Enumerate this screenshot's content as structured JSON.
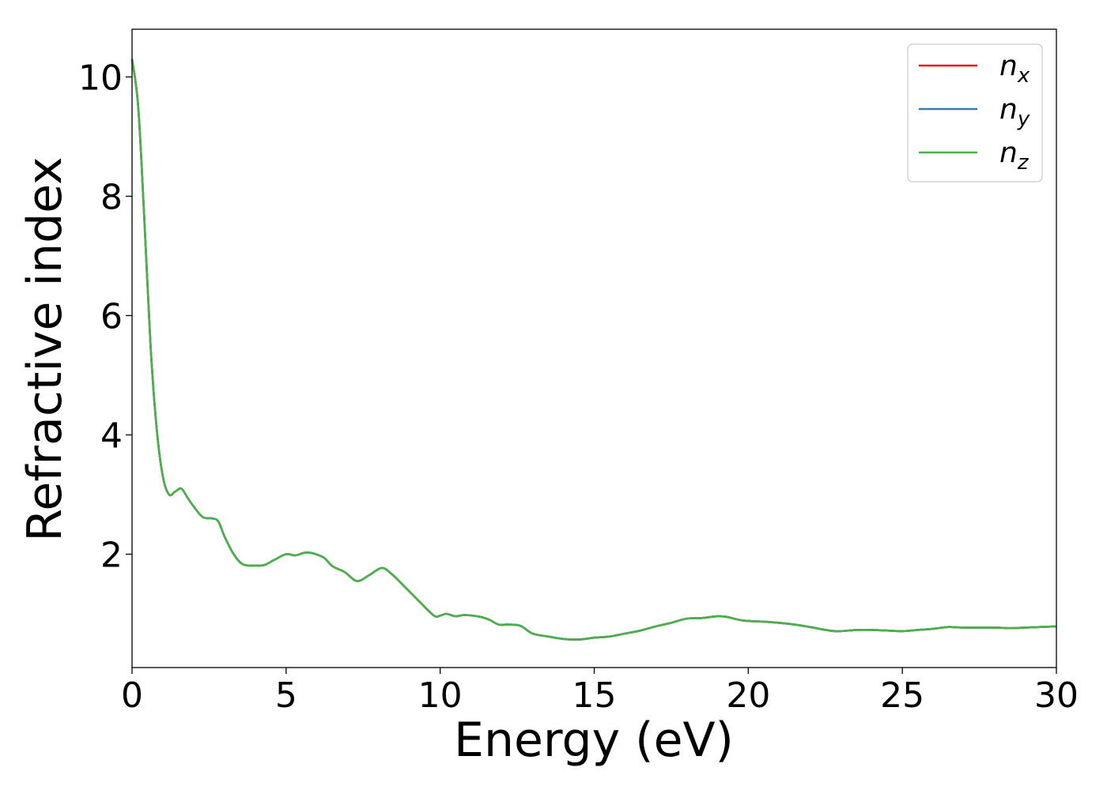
{
  "chart_data": {
    "type": "line",
    "xlabel": "Energy (eV)",
    "ylabel": "Refractive index",
    "xlim": [
      0,
      30
    ],
    "ylim": [
      0.1,
      10.8
    ],
    "xticks": [
      "0",
      "5",
      "10",
      "15",
      "20",
      "25",
      "30"
    ],
    "yticks": [
      "2",
      "4",
      "6",
      "8",
      "10"
    ],
    "grid": false,
    "legend_position": "top-right",
    "legend": [
      {
        "base": "n",
        "sub": "x",
        "color": "#e41a1c"
      },
      {
        "base": "n",
        "sub": "y",
        "color": "#377eb8"
      },
      {
        "base": "n",
        "sub": "z",
        "color": "#4daf4a"
      }
    ],
    "x": [
      0,
      0.2,
      0.4,
      0.6,
      0.8,
      1.0,
      1.2,
      1.4,
      1.6,
      1.8,
      2.0,
      2.3,
      2.6,
      2.8,
      3.0,
      3.3,
      3.6,
      4.0,
      4.3,
      4.6,
      5.0,
      5.3,
      5.7,
      6.2,
      6.5,
      6.9,
      7.3,
      7.7,
      8.1,
      8.4,
      8.8,
      9.3,
      9.8,
      10.0,
      10.2,
      10.5,
      10.8,
      11.3,
      11.6,
      11.9,
      12.2,
      12.6,
      13.0,
      13.5,
      14.0,
      14.5,
      15.0,
      15.5,
      16.0,
      16.5,
      17.0,
      17.5,
      18.0,
      18.5,
      19.0,
      19.3,
      19.8,
      20.5,
      21.0,
      21.5,
      22.0,
      22.8,
      23.5,
      24.0,
      24.5,
      25.0,
      25.5,
      26.0,
      26.5,
      27.0,
      28.0,
      28.5,
      29.0,
      30.0
    ],
    "series": [
      {
        "name": "n_x",
        "color": "#e41a1c",
        "values": [
          10.3,
          9.5,
          7.6,
          5.5,
          4.1,
          3.3,
          3.0,
          3.05,
          3.1,
          2.95,
          2.8,
          2.62,
          2.6,
          2.55,
          2.3,
          2.0,
          1.83,
          1.81,
          1.82,
          1.9,
          2.0,
          1.98,
          2.03,
          1.95,
          1.8,
          1.7,
          1.55,
          1.65,
          1.77,
          1.68,
          1.48,
          1.22,
          0.97,
          0.97,
          1.0,
          0.96,
          0.98,
          0.95,
          0.9,
          0.82,
          0.82,
          0.8,
          0.67,
          0.62,
          0.58,
          0.57,
          0.6,
          0.62,
          0.67,
          0.72,
          0.79,
          0.85,
          0.92,
          0.93,
          0.96,
          0.95,
          0.89,
          0.87,
          0.85,
          0.82,
          0.78,
          0.71,
          0.73,
          0.73,
          0.72,
          0.71,
          0.73,
          0.75,
          0.78,
          0.77,
          0.77,
          0.76,
          0.77,
          0.79
        ]
      },
      {
        "name": "n_y",
        "color": "#377eb8",
        "values": [
          10.3,
          9.5,
          7.6,
          5.5,
          4.1,
          3.3,
          3.0,
          3.05,
          3.1,
          2.95,
          2.8,
          2.62,
          2.6,
          2.55,
          2.3,
          2.0,
          1.83,
          1.81,
          1.82,
          1.9,
          2.0,
          1.98,
          2.03,
          1.95,
          1.8,
          1.7,
          1.55,
          1.65,
          1.77,
          1.68,
          1.48,
          1.22,
          0.97,
          0.97,
          1.0,
          0.96,
          0.98,
          0.95,
          0.9,
          0.82,
          0.82,
          0.8,
          0.67,
          0.62,
          0.58,
          0.57,
          0.6,
          0.62,
          0.67,
          0.72,
          0.79,
          0.85,
          0.92,
          0.93,
          0.96,
          0.95,
          0.89,
          0.87,
          0.85,
          0.82,
          0.78,
          0.71,
          0.73,
          0.73,
          0.72,
          0.71,
          0.73,
          0.75,
          0.78,
          0.77,
          0.77,
          0.76,
          0.77,
          0.79
        ]
      },
      {
        "name": "n_z",
        "color": "#4daf4a",
        "values": [
          10.3,
          9.5,
          7.6,
          5.5,
          4.1,
          3.3,
          3.0,
          3.05,
          3.1,
          2.95,
          2.8,
          2.62,
          2.6,
          2.55,
          2.3,
          2.0,
          1.83,
          1.81,
          1.82,
          1.9,
          2.0,
          1.98,
          2.03,
          1.95,
          1.8,
          1.7,
          1.55,
          1.65,
          1.77,
          1.68,
          1.48,
          1.22,
          0.97,
          0.97,
          1.0,
          0.96,
          0.98,
          0.95,
          0.9,
          0.82,
          0.82,
          0.8,
          0.67,
          0.62,
          0.58,
          0.57,
          0.6,
          0.62,
          0.67,
          0.72,
          0.79,
          0.85,
          0.92,
          0.93,
          0.96,
          0.95,
          0.89,
          0.87,
          0.85,
          0.82,
          0.78,
          0.71,
          0.73,
          0.73,
          0.72,
          0.71,
          0.73,
          0.75,
          0.78,
          0.77,
          0.77,
          0.76,
          0.77,
          0.79
        ]
      }
    ]
  }
}
